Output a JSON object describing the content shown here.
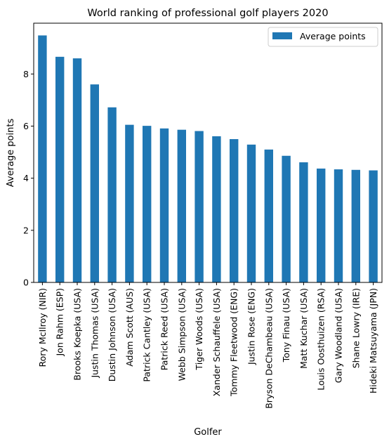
{
  "chart_data": {
    "type": "bar",
    "title": "World ranking of professional golf players 2020",
    "xlabel": "Golfer",
    "ylabel": "Average points",
    "ylim": [
      0,
      9.95
    ],
    "yticks": [
      "0",
      "2",
      "4",
      "6",
      "8"
    ],
    "grid": false,
    "legend": {
      "placement": "top-right",
      "entries": [
        "Average points"
      ]
    },
    "bar_color": "#1f77b4",
    "categories": [
      "Rory McIlroy (NIR)",
      "Jon Rahm (ESP)",
      "Brooks Koepka (USA)",
      "Justin Thomas (USA)",
      "Dustin Johnson (USA)",
      "Adam Scott (AUS)",
      "Patrick Cantley (USA)",
      "Patrick Reed (USA)",
      "Webb Simpson (USA)",
      "Tiger Woods (USA)",
      "Xander Schauffele (USA)",
      "Tommy Fleetwood (ENG)",
      "Justin Rose (ENG)",
      "Bryson DeChambeau (USA)",
      "Tony Finau (USA)",
      "Matt Kuchar (USA)",
      "Louis Oosthuizen (RSA)",
      "Gary Woodland (USA)",
      "Shane Lowry (IRE)",
      "Hideki Matsuyama (JPN)"
    ],
    "series": [
      {
        "name": "Average points",
        "values": [
          9.48,
          8.66,
          8.6,
          7.6,
          6.72,
          6.05,
          6.01,
          5.91,
          5.86,
          5.81,
          5.61,
          5.5,
          5.29,
          5.1,
          4.86,
          4.61,
          4.37,
          4.34,
          4.32,
          4.3
        ]
      }
    ]
  }
}
